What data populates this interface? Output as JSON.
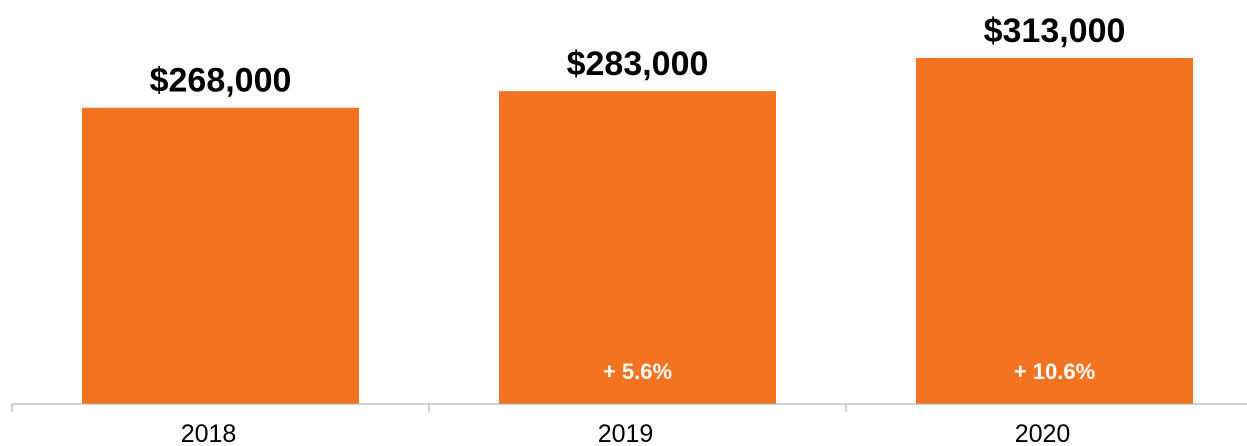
{
  "chart_data": {
    "type": "bar",
    "categories": [
      "2018",
      "2019",
      "2020"
    ],
    "values": [
      268000,
      283000,
      313000
    ],
    "value_labels": [
      "$268,000",
      "$283,000",
      "$313,000"
    ],
    "change_labels": [
      "",
      "+ 5.6%",
      "+ 10.6%"
    ],
    "title": "",
    "xlabel": "",
    "ylabel": "",
    "ylim": [
      0,
      313000
    ],
    "grid": false,
    "legend": "none",
    "bar_color": "#F37321"
  }
}
